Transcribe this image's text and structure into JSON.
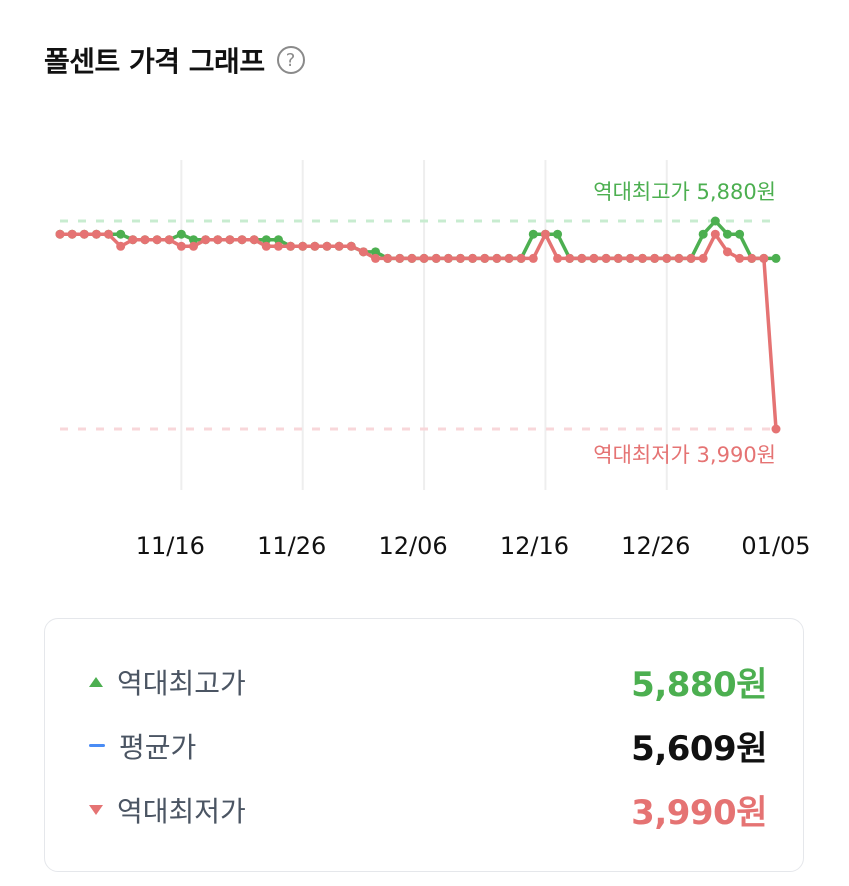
{
  "header": {
    "title": "폴센트 가격 그래프",
    "help_icon": "question-circle-icon"
  },
  "colors": {
    "max": "#4caf50",
    "min": "#e57373",
    "avg": "#4a8cf5",
    "grid": "#eeeeee"
  },
  "chart_data": {
    "type": "line",
    "title": "폴센트 가격 그래프",
    "xlabel": "",
    "ylabel": "",
    "ylim": [
      3990,
      5880
    ],
    "x_tick_labels": [
      "11/16",
      "11/26",
      "12/06",
      "12/16",
      "12/26",
      "01/05"
    ],
    "x_tick_index": [
      10,
      20,
      30,
      40,
      50,
      59
    ],
    "grid": "vertical",
    "legend": "none",
    "annotations": [
      {
        "text": "역대최고가 5,880원",
        "value": 5880,
        "color": "#4caf50"
      },
      {
        "text": "역대최저가 3,990원",
        "value": 3990,
        "color": "#e57373"
      }
    ],
    "series": [
      {
        "name": "최고가",
        "color": "#4caf50",
        "values": [
          5760,
          5760,
          5760,
          5760,
          5760,
          5760,
          5710,
          5710,
          5710,
          5710,
          5760,
          5710,
          5710,
          5710,
          5710,
          5710,
          5710,
          5710,
          5710,
          5650,
          5650,
          5650,
          5650,
          5650,
          5650,
          5600,
          5600,
          5540,
          5540,
          5540,
          5540,
          5540,
          5540,
          5540,
          5540,
          5540,
          5540,
          5540,
          5540,
          5760,
          5760,
          5760,
          5540,
          5540,
          5540,
          5540,
          5540,
          5540,
          5540,
          5540,
          5540,
          5540,
          5540,
          5760,
          5880,
          5760,
          5760,
          5540,
          5540,
          5540
        ]
      },
      {
        "name": "최저가",
        "color": "#e57373",
        "values": [
          5760,
          5760,
          5760,
          5760,
          5760,
          5650,
          5710,
          5710,
          5710,
          5710,
          5650,
          5650,
          5710,
          5710,
          5710,
          5710,
          5710,
          5650,
          5650,
          5650,
          5650,
          5650,
          5650,
          5650,
          5650,
          5600,
          5540,
          5540,
          5540,
          5540,
          5540,
          5540,
          5540,
          5540,
          5540,
          5540,
          5540,
          5540,
          5540,
          5540,
          5760,
          5540,
          5540,
          5540,
          5540,
          5540,
          5540,
          5540,
          5540,
          5540,
          5540,
          5540,
          5540,
          5540,
          5760,
          5600,
          5540,
          5540,
          5540,
          3990
        ]
      }
    ]
  },
  "summary": {
    "rows": [
      {
        "icon": "triangle-up-icon",
        "label": "역대최고가",
        "value": "5,880원",
        "color": "#4caf50"
      },
      {
        "icon": "dash-icon",
        "label": "평균가",
        "value": "5,609원",
        "color": "#111111"
      },
      {
        "icon": "triangle-down-icon",
        "label": "역대최저가",
        "value": "3,990원",
        "color": "#e57373"
      }
    ]
  }
}
